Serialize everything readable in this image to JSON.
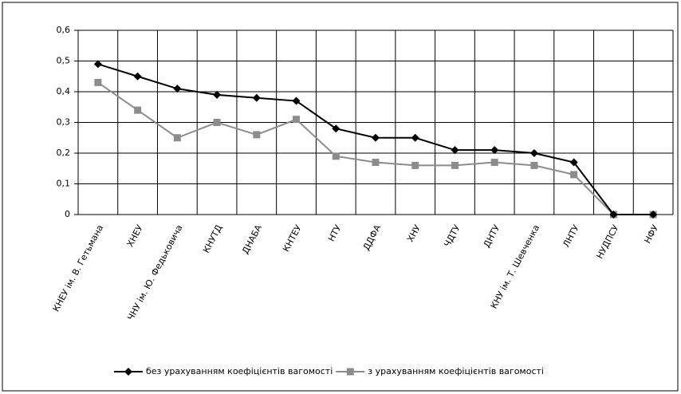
{
  "chart_data": {
    "type": "line",
    "categories": [
      "КНЕУ ім. В. Гетьмана",
      "ХНЕУ",
      "ЧНУ ім. Ю. Федьковича",
      "КНУТД",
      "ДНАБА",
      "КНТЕУ",
      "НТУ",
      "ДДФА",
      "ХНУ",
      "ЧДТУ",
      "ДНТУ",
      "КНУ ім. Т. Шевченка",
      "ЛНТУ",
      "НУДПСУ",
      "НФУ"
    ],
    "series": [
      {
        "name": "без урахуванням коефіцієнтів вагомості",
        "color": "#000000",
        "marker": "diamond",
        "values": [
          0.49,
          0.45,
          0.41,
          0.39,
          0.38,
          0.37,
          0.28,
          0.25,
          0.25,
          0.21,
          0.21,
          0.2,
          0.17,
          0,
          0
        ]
      },
      {
        "name": "з урахуванням коефіцієнтів вагомості",
        "color": "#8c8c8c",
        "marker": "square",
        "values": [
          0.43,
          0.34,
          0.25,
          0.3,
          0.26,
          0.31,
          0.19,
          0.17,
          0.16,
          0.16,
          0.17,
          0.16,
          0.13,
          0,
          0
        ]
      }
    ],
    "ylim": [
      0,
      0.6
    ],
    "yticks": [
      0,
      {
        "value": 0.1,
        "label": "0,1"
      },
      {
        "value": 0.2,
        "label": "0,2"
      },
      {
        "value": 0.3,
        "label": "0,3"
      },
      {
        "value": 0.4,
        "label": "0,4"
      },
      {
        "value": 0.5,
        "label": "0,5"
      },
      {
        "value": 0.6,
        "label": "0,6"
      }
    ],
    "grid": true,
    "legend": "bottom"
  }
}
